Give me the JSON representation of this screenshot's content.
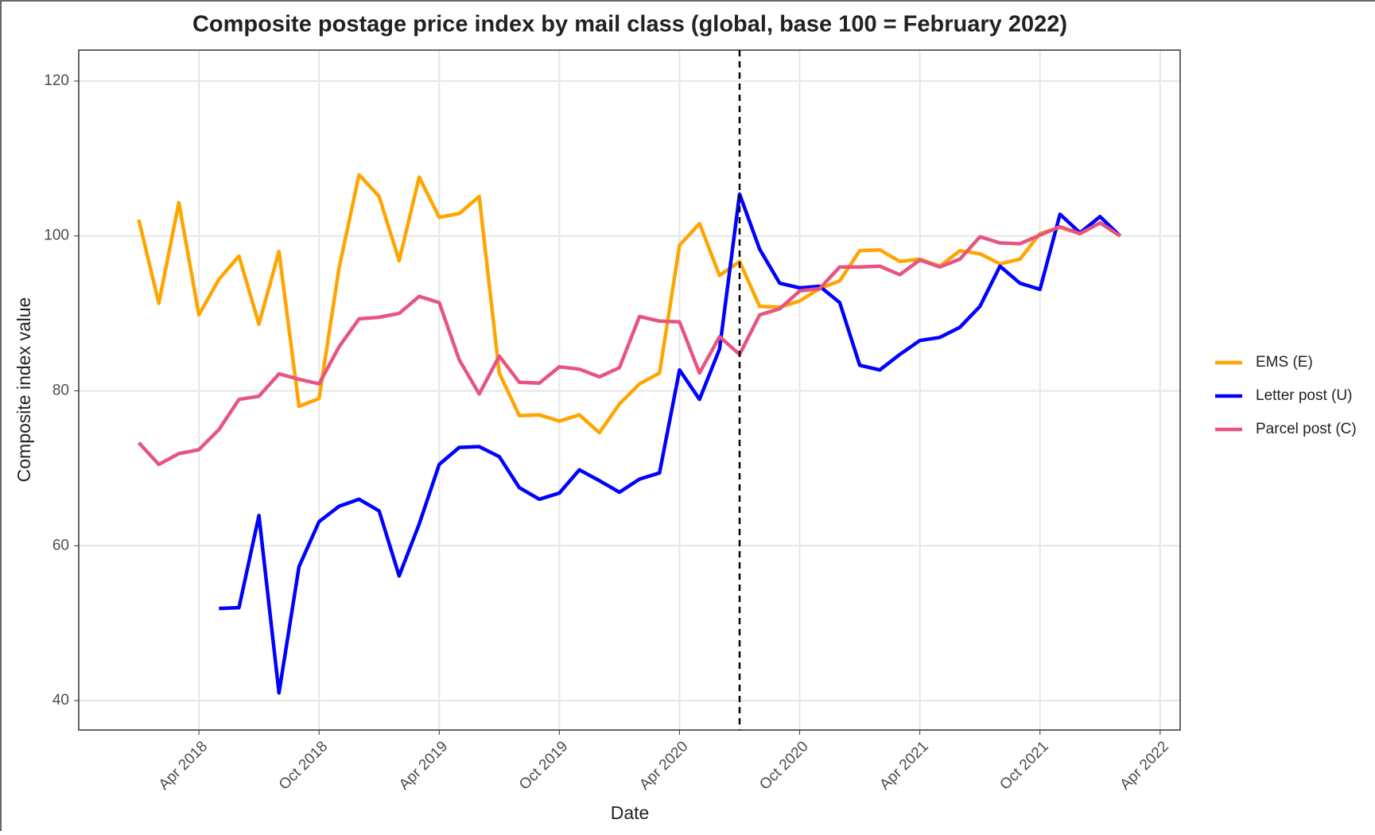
{
  "chart_data": {
    "type": "line",
    "title": "Composite postage price index by mail class (global, base 100 = February 2022)",
    "xlabel": "Date",
    "ylabel": "Composite index value",
    "x": [
      "2018-01",
      "2018-02",
      "2018-03",
      "2018-04",
      "2018-05",
      "2018-06",
      "2018-07",
      "2018-08",
      "2018-09",
      "2018-10",
      "2018-11",
      "2018-12",
      "2019-01",
      "2019-02",
      "2019-03",
      "2019-04",
      "2019-05",
      "2019-06",
      "2019-07",
      "2019-08",
      "2019-09",
      "2019-10",
      "2019-11",
      "2019-12",
      "2020-01",
      "2020-02",
      "2020-03",
      "2020-04",
      "2020-05",
      "2020-06",
      "2020-07",
      "2020-08",
      "2020-09",
      "2020-10",
      "2020-11",
      "2020-12",
      "2021-01",
      "2021-02",
      "2021-03",
      "2021-04",
      "2021-05",
      "2021-06",
      "2021-07",
      "2021-08",
      "2021-09",
      "2021-10",
      "2021-11",
      "2021-12",
      "2022-01",
      "2022-02"
    ],
    "series": [
      {
        "name": "EMS (E)",
        "color": "#ffa500",
        "values": [
          102.1,
          91.3,
          104.3,
          89.8,
          94.4,
          97.4,
          88.6,
          98.0,
          78.0,
          79.0,
          95.9,
          107.9,
          105.1,
          96.8,
          107.6,
          102.4,
          102.9,
          105.1,
          82.3,
          76.8,
          76.9,
          76.1,
          76.9,
          74.6,
          78.3,
          80.9,
          82.3,
          98.8,
          101.6,
          94.9,
          96.7,
          90.9,
          90.8,
          91.6,
          93.2,
          94.2,
          98.1,
          98.2,
          96.7,
          97.0,
          96.1,
          98.1,
          97.7,
          96.4,
          97.0,
          100.3,
          101.1,
          100.3,
          101.7,
          100
        ]
      },
      {
        "name": "Letter post (U)",
        "color": "#0000ff",
        "values": [
          null,
          null,
          null,
          null,
          51.9,
          52.0,
          63.9,
          41.0,
          57.3,
          63.1,
          65.1,
          66.0,
          64.5,
          56.1,
          62.8,
          70.5,
          72.7,
          72.8,
          71.5,
          67.5,
          66.0,
          66.8,
          69.8,
          68.4,
          66.9,
          68.6,
          69.4,
          82.7,
          78.9,
          85.4,
          105.4,
          98.3,
          93.9,
          93.3,
          93.5,
          91.4,
          83.3,
          82.7,
          84.7,
          86.5,
          86.9,
          88.2,
          90.9,
          96.1,
          93.9,
          93.1,
          102.8,
          100.4,
          102.5,
          100
        ]
      },
      {
        "name": "Parcel post (C)",
        "color": "#e75480",
        "values": [
          73.3,
          70.5,
          71.9,
          72.4,
          75.0,
          78.9,
          79.3,
          82.2,
          81.5,
          80.9,
          85.7,
          89.3,
          89.5,
          90.0,
          92.2,
          91.4,
          84.0,
          79.6,
          84.5,
          81.1,
          81.0,
          83.1,
          82.8,
          81.8,
          83.0,
          89.6,
          89.0,
          88.9,
          82.3,
          87.0,
          84.7,
          89.8,
          90.6,
          92.9,
          93.2,
          96.0,
          96.0,
          96.1,
          95.0,
          96.9,
          96.0,
          97.0,
          99.9,
          99.1,
          99.0,
          100.1,
          101.2,
          100.3,
          101.7,
          100
        ]
      }
    ],
    "xlim": [
      "2017-10",
      "2022-05"
    ],
    "xticks": [
      {
        "value": "2018-04",
        "label": "Apr 2018"
      },
      {
        "value": "2018-10",
        "label": "Oct 2018"
      },
      {
        "value": "2019-04",
        "label": "Apr 2019"
      },
      {
        "value": "2019-10",
        "label": "Oct 2019"
      },
      {
        "value": "2020-04",
        "label": "Apr 2020"
      },
      {
        "value": "2020-10",
        "label": "Oct 2020"
      },
      {
        "value": "2021-04",
        "label": "Apr 2021"
      },
      {
        "value": "2021-10",
        "label": "Oct 2021"
      },
      {
        "value": "2022-04",
        "label": "Apr 2022"
      }
    ],
    "ylim": [
      36.2,
      124
    ],
    "yticks": [
      40,
      60,
      80,
      100,
      120
    ],
    "vline": "2020-07",
    "grid": true,
    "legend": "right"
  }
}
